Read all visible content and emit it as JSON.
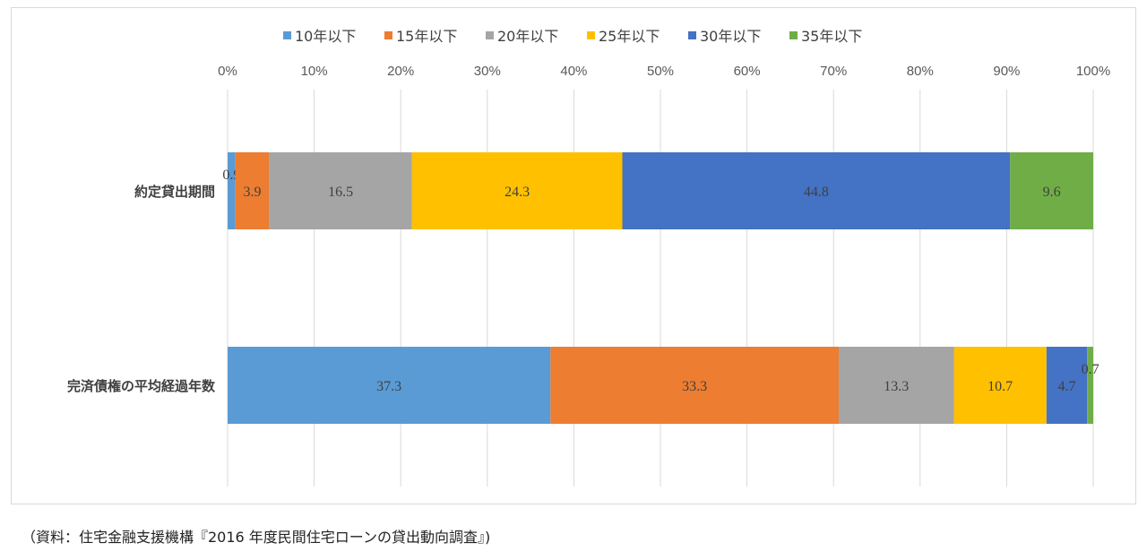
{
  "chart_data": {
    "type": "bar",
    "orientation": "horizontal",
    "stacked": "percent",
    "categories": [
      "約定貸出期間",
      "完済債権の平均経過年数"
    ],
    "series": [
      {
        "name": "10年以下",
        "color": "#5b9bd5",
        "values": [
          0.9,
          37.3
        ]
      },
      {
        "name": "15年以下",
        "color": "#ed7d31",
        "values": [
          3.9,
          33.3
        ]
      },
      {
        "name": "20年以下",
        "color": "#a5a5a5",
        "values": [
          16.5,
          13.3
        ]
      },
      {
        "name": "25年以下",
        "color": "#ffc000",
        "values": [
          24.3,
          10.7
        ]
      },
      {
        "name": "30年以下",
        "color": "#4472c4",
        "values": [
          44.8,
          4.7
        ]
      },
      {
        "name": "35年以下",
        "color": "#70ad47",
        "values": [
          9.6,
          0.7
        ]
      }
    ],
    "xticks": [
      "0%",
      "10%",
      "20%",
      "30%",
      "40%",
      "50%",
      "60%",
      "70%",
      "80%",
      "90%",
      "100%"
    ],
    "xlim": [
      0,
      100
    ],
    "grid": true,
    "legend": "top"
  },
  "source": "（資料：住宅金融支援機構『2016 年度民間住宅ローンの貸出動向調査』)"
}
